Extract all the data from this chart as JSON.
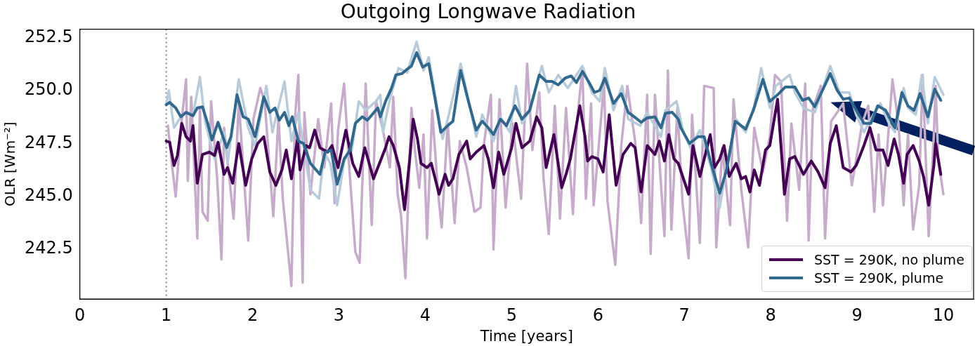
{
  "chart_data": {
    "type": "line",
    "title": "Outgoing Longwave Radiation",
    "xlabel": "Time [years]",
    "ylabel": "OLR [Wm⁻²]",
    "xlim": [
      0,
      10.35
    ],
    "xticks": [
      0,
      1,
      2,
      3,
      4,
      5,
      6,
      7,
      8,
      9,
      10
    ],
    "ylim": [
      240.15,
      252.9
    ],
    "yticks": [
      {
        "value": 242.5,
        "label": "242.5"
      },
      {
        "value": 245,
        "label": "245.0"
      },
      {
        "value": 247.5,
        "label": "247.5"
      },
      {
        "value": 250,
        "label": "250.0"
      },
      {
        "value": 252.5,
        "label": "252.5"
      }
    ],
    "grid": false,
    "legend": "bottom right",
    "marker": "none",
    "line_style": "solid",
    "ref_lines": [
      {
        "axis": "x",
        "value": 1,
        "color": "#808080",
        "line_style": "dotted"
      }
    ],
    "series": [
      {
        "color": "#c6abcb",
        "x": [
          1.02,
          1.07,
          1.11,
          1.17,
          1.23,
          1.25,
          1.29,
          1.36,
          1.39,
          1.42,
          1.48,
          1.52,
          1.59,
          1.64,
          1.67,
          1.78,
          1.84,
          1.95,
          2.01,
          2.09,
          2.14,
          2.24,
          2.3,
          2.35,
          2.45,
          2.49,
          2.53,
          2.58,
          2.6,
          2.67,
          2.76,
          2.83,
          2.91,
          2.95,
          2.99,
          3.06,
          3.12,
          3.19,
          3.24,
          3.31,
          3.38,
          3.43,
          3.51,
          3.59,
          3.63,
          3.68,
          3.72,
          3.77,
          3.84,
          3.88,
          3.93,
          3.98,
          4.02,
          4.08,
          4.15,
          4.19,
          4.26,
          4.34,
          4.4,
          4.48,
          4.57,
          4.64,
          4.68,
          4.76,
          4.79,
          4.86,
          4.93,
          5.01,
          5.11,
          5.18,
          5.24,
          5.32,
          5.37,
          5.43,
          5.5,
          5.56,
          5.63,
          5.71,
          5.76,
          5.82,
          5.86,
          5.92,
          5.95,
          6.02,
          6.07,
          6.11,
          6.2,
          6.27,
          6.34,
          6.43,
          6.5,
          6.57,
          6.61,
          6.66,
          6.77,
          6.81,
          6.85,
          6.92,
          6.98,
          7.05,
          7.09,
          7.18,
          7.23,
          7.34,
          7.37,
          7.44,
          7.53,
          7.57,
          7.66,
          7.74,
          7.81,
          7.91,
          7.99,
          8.05,
          8.12,
          8.19,
          8.24,
          8.33,
          8.4,
          8.44,
          8.49,
          8.58,
          8.63,
          8.7,
          8.84,
          8.94,
          9.06,
          9.13,
          9.2,
          9.25,
          9.3,
          9.41,
          9.48,
          9.54,
          9.59,
          9.65,
          9.72,
          9.76,
          9.83,
          9.89,
          9.91,
          9.94,
          10.0
        ],
        "values": [
          248.34,
          246.36,
          244.99,
          248.24,
          250.53,
          245.73,
          249.7,
          243.01,
          249.18,
          244.27,
          243.85,
          249.49,
          245.83,
          242.02,
          248.24,
          243.95,
          249.49,
          242.91,
          248.65,
          250.12,
          249.49,
          244.06,
          248.76,
          244.89,
          240.76,
          248.65,
          250.74,
          240.92,
          248.97,
          245.1,
          248.65,
          246.36,
          249.39,
          244.68,
          248.13,
          250.33,
          246.36,
          242.38,
          241.86,
          250.33,
          243.64,
          249.49,
          248.13,
          246.36,
          249.7,
          245.1,
          244.06,
          241.13,
          249.18,
          247.19,
          245.41,
          247.92,
          243.01,
          249.07,
          245.1,
          243.53,
          248.45,
          243.74,
          247.61,
          246.36,
          244.27,
          244.47,
          247.5,
          249.8,
          242.49,
          249.59,
          244.47,
          248.45,
          244.89,
          251.27,
          247.19,
          249.91,
          245.83,
          243.22,
          249.28,
          243.95,
          249.18,
          244.16,
          248.65,
          251.06,
          244.89,
          249.39,
          244.58,
          247.92,
          250.33,
          244.79,
          241.76,
          247.4,
          250.22,
          247.61,
          243.74,
          249.8,
          242.28,
          249.8,
          243.12,
          250.95,
          243.43,
          249.18,
          244.68,
          242.07,
          248.86,
          242.8,
          250.22,
          250.12,
          242.59,
          247.3,
          243.64,
          249.59,
          245.31,
          242.59,
          248.24,
          246.15,
          247.82,
          250.74,
          250.43,
          243.85,
          248.45,
          245.31,
          250.33,
          242.91,
          249.18,
          250.22,
          243.01,
          248.55,
          249.39,
          245.52,
          248.45,
          249.28,
          244.27,
          247.92,
          244.58,
          250.53,
          248.45,
          244.58,
          247.92,
          243.43,
          245.52,
          250.74,
          243.12,
          247.92,
          250.22,
          246.77,
          245.1
        ]
      },
      {
        "color": "#b7cbda",
        "x": [
          1.0,
          1.03,
          1.09,
          1.17,
          1.23,
          1.31,
          1.39,
          1.45,
          1.56,
          1.67,
          1.71,
          1.84,
          1.95,
          2.03,
          2.16,
          2.23,
          2.37,
          2.45,
          2.53,
          2.67,
          2.77,
          2.83,
          2.9,
          2.98,
          3.06,
          3.15,
          3.23,
          3.31,
          3.43,
          3.48,
          3.51,
          3.59,
          3.69,
          3.79,
          3.9,
          3.98,
          4.04,
          4.2,
          4.26,
          4.41,
          4.59,
          4.66,
          4.79,
          4.87,
          4.98,
          5.05,
          5.12,
          5.21,
          5.35,
          5.43,
          5.54,
          5.65,
          5.82,
          5.93,
          6.02,
          6.08,
          6.18,
          6.28,
          6.35,
          6.49,
          6.57,
          6.73,
          6.78,
          6.91,
          6.99,
          7.07,
          7.18,
          7.31,
          7.41,
          7.49,
          7.6,
          7.71,
          7.81,
          7.89,
          7.99,
          8.06,
          8.22,
          8.28,
          8.38,
          8.51,
          8.69,
          8.8,
          8.91,
          8.99,
          9.08,
          9.19,
          9.27,
          9.37,
          9.44,
          9.54,
          9.59,
          9.68,
          9.75,
          9.82,
          9.9,
          10.0
        ],
        "values": [
          249.33,
          250.01,
          248.24,
          248.76,
          248.97,
          248.81,
          250.64,
          248.55,
          246.77,
          248.03,
          246.56,
          250.53,
          248.24,
          247.4,
          250.22,
          248.03,
          250.43,
          247.61,
          248.97,
          245.31,
          244.89,
          247.09,
          246.56,
          244.58,
          246.67,
          247.19,
          249.49,
          249.07,
          249.49,
          249.8,
          248.03,
          249.59,
          251.06,
          250.85,
          252.31,
          250.95,
          251.58,
          247.71,
          248.65,
          251.27,
          247.82,
          248.86,
          247.61,
          248.76,
          248.03,
          250.22,
          248.45,
          249.07,
          251.16,
          249.91,
          250.74,
          250.12,
          251.16,
          249.91,
          249.49,
          251.06,
          249.07,
          250.22,
          248.65,
          248.34,
          248.97,
          247.82,
          249.07,
          249.49,
          248.03,
          247.3,
          248.13,
          246.36,
          244.47,
          246.46,
          248.65,
          248.03,
          249.28,
          251.06,
          249.18,
          250.22,
          250.74,
          249.91,
          249.18,
          248.97,
          251.16,
          249.91,
          249.91,
          248.86,
          248.03,
          248.86,
          249.39,
          248.45,
          248.03,
          250.12,
          249.18,
          248.86,
          250.74,
          248.45,
          250.64,
          249.8
        ]
      },
      {
        "name": "SST = 290K, no plume",
        "color": "#440154",
        "x": [
          1.0,
          1.04,
          1.09,
          1.13,
          1.18,
          1.23,
          1.28,
          1.31,
          1.36,
          1.42,
          1.5,
          1.56,
          1.6,
          1.67,
          1.71,
          1.77,
          1.84,
          1.92,
          1.99,
          2.06,
          2.13,
          2.2,
          2.27,
          2.34,
          2.39,
          2.45,
          2.52,
          2.55,
          2.62,
          2.66,
          2.72,
          2.78,
          2.87,
          2.92,
          2.99,
          3.08,
          3.16,
          3.23,
          3.3,
          3.4,
          3.48,
          3.54,
          3.58,
          3.63,
          3.7,
          3.76,
          3.82,
          3.86,
          3.91,
          3.95,
          4.02,
          4.07,
          4.16,
          4.23,
          4.27,
          4.32,
          4.39,
          4.48,
          4.52,
          4.59,
          4.68,
          4.73,
          4.79,
          4.85,
          4.91,
          5.0,
          5.05,
          5.12,
          5.21,
          5.29,
          5.35,
          5.4,
          5.49,
          5.58,
          5.63,
          5.68,
          5.79,
          5.85,
          5.88,
          5.93,
          6.0,
          6.06,
          6.13,
          6.21,
          6.29,
          6.38,
          6.43,
          6.5,
          6.57,
          6.66,
          6.71,
          6.77,
          6.82,
          6.88,
          6.93,
          6.99,
          7.05,
          7.1,
          7.18,
          7.3,
          7.35,
          7.41,
          7.46,
          7.52,
          7.6,
          7.66,
          7.71,
          7.76,
          7.81,
          7.87,
          7.94,
          7.99,
          8.08,
          8.16,
          8.22,
          8.28,
          8.38,
          8.47,
          8.55,
          8.63,
          8.69,
          8.76,
          8.84,
          8.93,
          8.99,
          9.08,
          9.15,
          9.22,
          9.3,
          9.36,
          9.43,
          9.48,
          9.54,
          9.58,
          9.65,
          9.72,
          9.77,
          9.83,
          9.89,
          9.91,
          9.97
        ],
        "values": [
          247.61,
          247.56,
          246.46,
          246.93,
          248.45,
          247.82,
          247.61,
          248.34,
          245.62,
          246.98,
          247.09,
          246.93,
          247.56,
          246.04,
          246.36,
          245.62,
          247.5,
          245.52,
          246.77,
          247.5,
          247.82,
          246.15,
          245.52,
          246.25,
          247.19,
          245.83,
          247.71,
          246.25,
          247.4,
          247.3,
          248.13,
          247.3,
          247.09,
          247.4,
          246.36,
          248.13,
          246.56,
          245.94,
          247.3,
          245.83,
          246.67,
          247.3,
          247.82,
          247.4,
          246.36,
          244.37,
          246.77,
          248.65,
          247.71,
          246.56,
          246.36,
          246.56,
          245.1,
          246.04,
          245.52,
          245.83,
          246.98,
          247.61,
          246.77,
          247.09,
          247.4,
          246.77,
          245.41,
          247.09,
          246.04,
          247.3,
          248.45,
          247.3,
          247.61,
          248.76,
          248.24,
          246.36,
          247.92,
          245.41,
          246.04,
          246.77,
          249.28,
          247.82,
          246.67,
          246.88,
          246.77,
          246.15,
          248.86,
          245.52,
          246.98,
          247.5,
          247.3,
          245.21,
          247.4,
          246.98,
          247.61,
          246.67,
          247.92,
          246.77,
          246.56,
          245.83,
          245.1,
          247.4,
          245.94,
          247.92,
          246.36,
          246.77,
          247.4,
          245.94,
          246.56,
          245.83,
          245.94,
          245.21,
          246.25,
          245.52,
          247.19,
          247.4,
          249.59,
          245.1,
          246.77,
          246.88,
          246.04,
          246.67,
          246.15,
          245.41,
          247.5,
          248.34,
          246.36,
          246.15,
          246.46,
          247.4,
          248.24,
          247.19,
          247.19,
          246.46,
          247.71,
          246.98,
          245.62,
          246.98,
          247.4,
          246.67,
          245.94,
          244.58,
          246.46,
          247.5,
          246.04
        ]
      },
      {
        "name": "SST = 290K, plume",
        "color": "#31688e",
        "x": [
          1.0,
          1.04,
          1.11,
          1.17,
          1.23,
          1.31,
          1.36,
          1.42,
          1.48,
          1.53,
          1.6,
          1.7,
          1.75,
          1.82,
          1.89,
          1.95,
          2.03,
          2.13,
          2.2,
          2.26,
          2.31,
          2.37,
          2.42,
          2.46,
          2.53,
          2.59,
          2.67,
          2.78,
          2.84,
          2.91,
          2.98,
          3.06,
          3.13,
          3.19,
          3.27,
          3.33,
          3.45,
          3.48,
          3.54,
          3.61,
          3.66,
          3.73,
          3.79,
          3.84,
          3.9,
          3.97,
          4.04,
          4.11,
          4.18,
          4.26,
          4.32,
          4.41,
          4.5,
          4.59,
          4.66,
          4.73,
          4.79,
          4.87,
          4.94,
          5.04,
          5.12,
          5.21,
          5.32,
          5.4,
          5.47,
          5.54,
          5.62,
          5.69,
          5.75,
          5.82,
          5.89,
          5.96,
          6.02,
          6.08,
          6.18,
          6.27,
          6.35,
          6.42,
          6.5,
          6.57,
          6.66,
          6.73,
          6.78,
          6.86,
          6.93,
          6.96,
          7.06,
          7.16,
          7.23,
          7.31,
          7.41,
          7.49,
          7.59,
          7.71,
          7.8,
          7.91,
          7.99,
          8.08,
          8.17,
          8.28,
          8.37,
          8.44,
          8.51,
          8.6,
          8.69,
          8.77,
          8.84,
          8.91,
          8.99,
          9.08,
          9.16,
          9.24,
          9.33,
          9.44,
          9.52,
          9.59,
          9.66,
          9.73,
          9.82,
          9.9,
          9.97
        ],
        "values": [
          249.33,
          249.44,
          249.18,
          248.76,
          248.97,
          248.81,
          249.18,
          249.23,
          248.45,
          247.66,
          248.5,
          247.3,
          247.82,
          249.8,
          248.76,
          248.65,
          247.82,
          249.7,
          248.97,
          249.18,
          248.6,
          248.97,
          248.34,
          248.76,
          247.61,
          247.5,
          246.56,
          246.04,
          247.09,
          247.19,
          245.57,
          246.77,
          247.19,
          248.45,
          248.76,
          248.6,
          249.18,
          248.76,
          249.49,
          250.12,
          250.74,
          250.8,
          251.01,
          251.16,
          251.79,
          251.11,
          251.27,
          249.7,
          248.03,
          248.34,
          248.55,
          250.95,
          249.49,
          248.13,
          248.55,
          248.24,
          247.92,
          248.65,
          248.34,
          249.28,
          248.65,
          249.07,
          250.74,
          250.43,
          250.43,
          250.27,
          250.59,
          250.69,
          250.38,
          250.9,
          250.43,
          249.91,
          250.01,
          250.59,
          249.39,
          249.86,
          248.97,
          248.76,
          248.5,
          248.71,
          248.76,
          248.24,
          248.92,
          248.97,
          248.65,
          248.24,
          247.5,
          247.82,
          247.82,
          246.56,
          245.15,
          246.25,
          248.55,
          248.18,
          249.07,
          250.53,
          249.49,
          249.8,
          250.17,
          250.17,
          249.54,
          249.65,
          249.23,
          250.01,
          250.8,
          250.01,
          249.59,
          249.65,
          249.07,
          248.45,
          248.45,
          249.28,
          249.07,
          248.24,
          249.91,
          249.28,
          249.07,
          249.86,
          248.76,
          250.07,
          249.54
        ]
      }
    ]
  }
}
